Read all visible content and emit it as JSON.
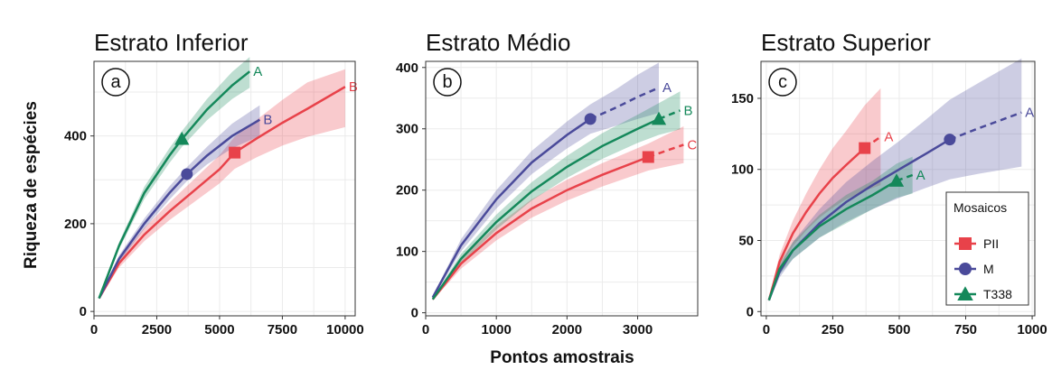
{
  "figure": {
    "ylabel": "Riqueza de espécies",
    "xlabel": "Pontos amostrais"
  },
  "legend": {
    "title": "Mosaicos",
    "entries": [
      {
        "label": "PII",
        "color": "#E8424A",
        "marker": "square"
      },
      {
        "label": "M",
        "color": "#4A4A9A",
        "marker": "circle"
      },
      {
        "label": "T338",
        "color": "#14885A",
        "marker": "triangle"
      }
    ]
  },
  "chart_data": [
    {
      "type": "line",
      "panel": "a",
      "title": "Estrato Inferior",
      "xlim": [
        0,
        10400
      ],
      "ylim": [
        -10,
        570
      ],
      "xticks": [
        0,
        2500,
        5000,
        7500,
        10000
      ],
      "yticks": [
        0,
        200,
        400
      ],
      "grid": true,
      "series": [
        {
          "name": "PII",
          "color": "#E8424A",
          "marker": "square",
          "label": "B",
          "x": [
            200,
            1000,
            2000,
            3000,
            4000,
            5000,
            5600,
            6500,
            7500,
            8500,
            10000
          ],
          "y": [
            30,
            110,
            175,
            228,
            276,
            324,
            362,
            395,
            430,
            462,
            512
          ],
          "marker_point": [
            5600,
            362
          ],
          "extrap_from": null,
          "lower": [
            28,
            100,
            160,
            208,
            250,
            292,
            325,
            352,
            378,
            398,
            420
          ],
          "upper": [
            32,
            120,
            190,
            248,
            302,
            356,
            398,
            438,
            482,
            522,
            552
          ]
        },
        {
          "name": "M",
          "color": "#4A4A9A",
          "marker": "circle",
          "label": "B",
          "x": [
            200,
            1000,
            2000,
            3000,
            3700,
            4500,
            5500,
            6600
          ],
          "y": [
            30,
            120,
            200,
            270,
            313,
            355,
            400,
            437
          ],
          "marker_point": [
            3700,
            313
          ],
          "extrap_from": null,
          "lower": [
            28,
            112,
            188,
            255,
            297,
            335,
            372,
            400
          ],
          "upper": [
            32,
            128,
            212,
            285,
            329,
            375,
            428,
            470
          ]
        },
        {
          "name": "T338",
          "color": "#14885A",
          "marker": "triangle",
          "label": "A",
          "x": [
            200,
            1000,
            2000,
            3000,
            3500,
            4500,
            5500,
            6200
          ],
          "y": [
            30,
            150,
            270,
            355,
            393,
            460,
            515,
            547
          ],
          "marker_point": [
            3500,
            393
          ],
          "extrap_from": null,
          "lower": [
            28,
            142,
            256,
            338,
            375,
            436,
            484,
            510
          ],
          "upper": [
            32,
            158,
            284,
            372,
            411,
            484,
            546,
            580
          ]
        }
      ]
    },
    {
      "type": "line",
      "panel": "b",
      "title": "Estrato Médio",
      "xlim": [
        0,
        3850
      ],
      "ylim": [
        -5,
        410
      ],
      "xticks": [
        0,
        1000,
        2000,
        3000
      ],
      "yticks": [
        0,
        100,
        200,
        300,
        400
      ],
      "grid": true,
      "series": [
        {
          "name": "PII",
          "color": "#E8424A",
          "marker": "square",
          "label": "C",
          "x": [
            100,
            500,
            1000,
            1500,
            2000,
            2500,
            3150,
            3400,
            3650
          ],
          "y": [
            22,
            80,
            130,
            170,
            200,
            225,
            254,
            264,
            274
          ],
          "marker_point": [
            3150,
            254
          ],
          "extrap_from": 3150,
          "lower": [
            20,
            72,
            118,
            155,
            183,
            206,
            232,
            238,
            244
          ],
          "upper": [
            24,
            88,
            142,
            185,
            217,
            244,
            276,
            290,
            304
          ]
        },
        {
          "name": "M",
          "color": "#4A4A9A",
          "marker": "circle",
          "label": "A",
          "x": [
            100,
            500,
            1000,
            1500,
            2000,
            2330,
            2700,
            3000,
            3300
          ],
          "y": [
            25,
            110,
            185,
            245,
            290,
            316,
            335,
            352,
            367
          ],
          "marker_point": [
            2330,
            316
          ],
          "extrap_from": 2330,
          "lower": [
            23,
            100,
            170,
            226,
            268,
            292,
            305,
            316,
            326
          ],
          "upper": [
            27,
            120,
            200,
            264,
            312,
            340,
            365,
            388,
            408
          ]
        },
        {
          "name": "T338",
          "color": "#14885A",
          "marker": "triangle",
          "label": "B",
          "x": [
            100,
            500,
            1000,
            1500,
            2000,
            2500,
            3000,
            3300,
            3600
          ],
          "y": [
            22,
            88,
            148,
            198,
            238,
            272,
            300,
            316,
            330
          ],
          "marker_point": [
            3300,
            316
          ],
          "extrap_from": 3300,
          "lower": [
            20,
            80,
            136,
            183,
            220,
            251,
            277,
            290,
            299
          ],
          "upper": [
            24,
            96,
            160,
            213,
            256,
            293,
            323,
            342,
            361
          ]
        }
      ]
    },
    {
      "type": "line",
      "panel": "c",
      "title": "Estrato Superior",
      "xlim": [
        -20,
        1010
      ],
      "ylim": [
        -3,
        176
      ],
      "xticks": [
        0,
        250,
        500,
        750,
        1000
      ],
      "yticks": [
        0,
        50,
        100,
        150
      ],
      "grid": true,
      "series": [
        {
          "name": "PII",
          "color": "#E8424A",
          "marker": "square",
          "label": "A",
          "x": [
            10,
            50,
            100,
            150,
            200,
            250,
            300,
            370,
            430
          ],
          "y": [
            8,
            35,
            55,
            70,
            83,
            94,
            103,
            115,
            123
          ],
          "marker_point": [
            370,
            115
          ],
          "extrap_from": 370,
          "lower": [
            7,
            30,
            46,
            57,
            66,
            73,
            79,
            85,
            89
          ],
          "upper": [
            9,
            40,
            64,
            83,
            100,
            115,
            127,
            145,
            157
          ]
        },
        {
          "name": "M",
          "color": "#4A4A9A",
          "marker": "circle",
          "label": "A",
          "x": [
            10,
            50,
            100,
            200,
            300,
            400,
            500,
            600,
            690,
            800,
            960
          ],
          "y": [
            8,
            28,
            43,
            62,
            77,
            89,
            100,
            111,
            121,
            129,
            140
          ],
          "marker_point": [
            690,
            121
          ],
          "extrap_from": 690,
          "lower": [
            7,
            24,
            37,
            52,
            63,
            72,
            80,
            87,
            93,
            97,
            102
          ],
          "upper": [
            9,
            32,
            49,
            72,
            91,
            106,
            120,
            135,
            149,
            161,
            178
          ]
        },
        {
          "name": "T338",
          "color": "#14885A",
          "marker": "triangle",
          "label": "A",
          "x": [
            10,
            50,
            100,
            200,
            300,
            400,
            490,
            550
          ],
          "y": [
            8,
            30,
            43,
            60,
            72,
            82,
            92,
            96
          ],
          "marker_point": [
            490,
            92
          ],
          "extrap_from": 490,
          "lower": [
            7,
            26,
            37,
            52,
            62,
            72,
            80,
            83
          ],
          "upper": [
            9,
            34,
            49,
            68,
            82,
            92,
            104,
            109
          ]
        }
      ]
    }
  ]
}
